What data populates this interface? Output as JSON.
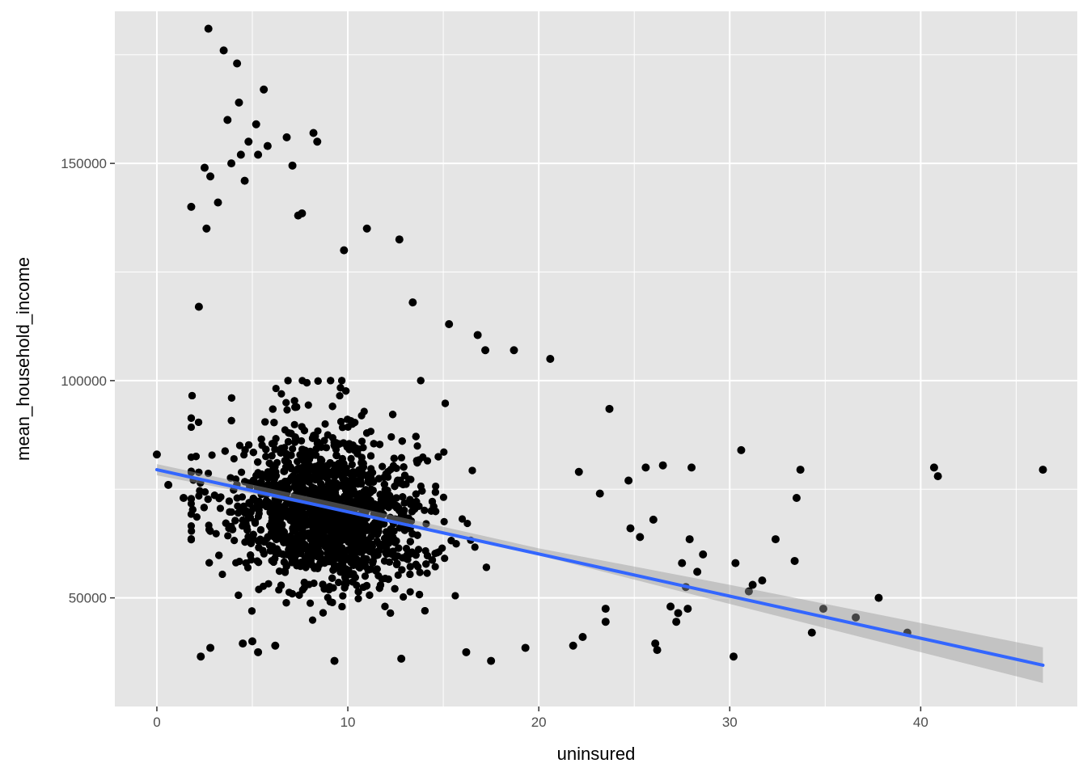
{
  "chart_data": {
    "type": "scatter",
    "title": "",
    "xlabel": "uninsured",
    "ylabel": "mean_household_income",
    "xlim": [
      -2.2,
      48.2
    ],
    "ylim": [
      25000,
      185000
    ],
    "xticks": [
      0,
      10,
      20,
      30,
      40
    ],
    "xtick_labels": [
      "0",
      "10",
      "20",
      "30",
      "40"
    ],
    "yticks": [
      50000,
      100000,
      150000
    ],
    "ytick_labels": [
      "50000",
      "100000",
      "150000"
    ],
    "grid": true,
    "legend": "none",
    "colors": {
      "panel_background": "#e5e5e5",
      "grid": "#ffffff",
      "points": "#000000",
      "fit_line": "#3366ff",
      "confidence_band": "#999999"
    },
    "cluster": {
      "approx_point_count": 3000,
      "x_center": 9.0,
      "y_center": 67000,
      "note_values": "dense bulk of points between uninsured 2-22 and income 45000-95000"
    },
    "points": [
      [
        0,
        83000
      ],
      [
        0.6,
        76000
      ],
      [
        1.4,
        73000
      ],
      [
        1.8,
        140000
      ],
      [
        2.2,
        117000
      ],
      [
        2.3,
        36500
      ],
      [
        2.5,
        149000
      ],
      [
        2.6,
        135000
      ],
      [
        2.7,
        181000
      ],
      [
        2.8,
        38500
      ],
      [
        2.8,
        147000
      ],
      [
        3.2,
        141000
      ],
      [
        3.5,
        176000
      ],
      [
        3.7,
        160000
      ],
      [
        3.9,
        150000
      ],
      [
        4.2,
        173000
      ],
      [
        4.3,
        164000
      ],
      [
        4.4,
        152000
      ],
      [
        4.5,
        39500
      ],
      [
        4.6,
        146000
      ],
      [
        4.8,
        155000
      ],
      [
        5.0,
        40000
      ],
      [
        5.2,
        159000
      ],
      [
        5.3,
        37500
      ],
      [
        5.3,
        152000
      ],
      [
        5.6,
        167000
      ],
      [
        5.8,
        154000
      ],
      [
        6.2,
        39000
      ],
      [
        6.8,
        156000
      ],
      [
        7.1,
        149500
      ],
      [
        7.4,
        138000
      ],
      [
        7.6,
        138500
      ],
      [
        8.2,
        157000
      ],
      [
        8.4,
        155000
      ],
      [
        9.3,
        35500
      ],
      [
        9.8,
        130000
      ],
      [
        11.0,
        135000
      ],
      [
        12.7,
        132500
      ],
      [
        12.8,
        36000
      ],
      [
        13.4,
        118000
      ],
      [
        15.3,
        113000
      ],
      [
        16.2,
        37500
      ],
      [
        16.8,
        110500
      ],
      [
        17.2,
        107000
      ],
      [
        17.5,
        35500
      ],
      [
        18.7,
        107000
      ],
      [
        19.3,
        38500
      ],
      [
        20.6,
        105000
      ],
      [
        21.8,
        39000
      ],
      [
        22.3,
        41000
      ],
      [
        22.1,
        79000
      ],
      [
        23.2,
        74000
      ],
      [
        23.5,
        44500
      ],
      [
        23.5,
        47500
      ],
      [
        23.7,
        93500
      ],
      [
        24.7,
        77000
      ],
      [
        24.8,
        66000
      ],
      [
        25.3,
        64000
      ],
      [
        25.6,
        80000
      ],
      [
        26.0,
        68000
      ],
      [
        26.1,
        39500
      ],
      [
        26.2,
        38000
      ],
      [
        26.5,
        80500
      ],
      [
        26.9,
        48000
      ],
      [
        27.2,
        44500
      ],
      [
        27.3,
        46500
      ],
      [
        27.5,
        58000
      ],
      [
        27.7,
        52500
      ],
      [
        27.8,
        47500
      ],
      [
        27.9,
        63500
      ],
      [
        28.0,
        80000
      ],
      [
        28.3,
        56000
      ],
      [
        28.6,
        60000
      ],
      [
        30.2,
        36500
      ],
      [
        30.3,
        58000
      ],
      [
        30.6,
        84000
      ],
      [
        31.0,
        51500
      ],
      [
        31.2,
        53000
      ],
      [
        31.7,
        54000
      ],
      [
        32.4,
        63500
      ],
      [
        33.4,
        58500
      ],
      [
        33.5,
        73000
      ],
      [
        33.7,
        79500
      ],
      [
        34.3,
        42000
      ],
      [
        34.9,
        47500
      ],
      [
        36.6,
        45500
      ],
      [
        37.8,
        50000
      ],
      [
        39.3,
        42000
      ],
      [
        40.7,
        80000
      ],
      [
        40.9,
        78000
      ],
      [
        46.4,
        79500
      ]
    ],
    "fit_line": {
      "method": "linear",
      "x": [
        0,
        46.4
      ],
      "y": [
        79500,
        34500
      ],
      "se_band": {
        "x": [
          0,
          10,
          20,
          30,
          46.4
        ],
        "lower": [
          78200,
          69700,
          59800,
          48600,
          30400
        ],
        "upper": [
          80800,
          71300,
          61400,
          53000,
          38600
        ]
      }
    }
  }
}
